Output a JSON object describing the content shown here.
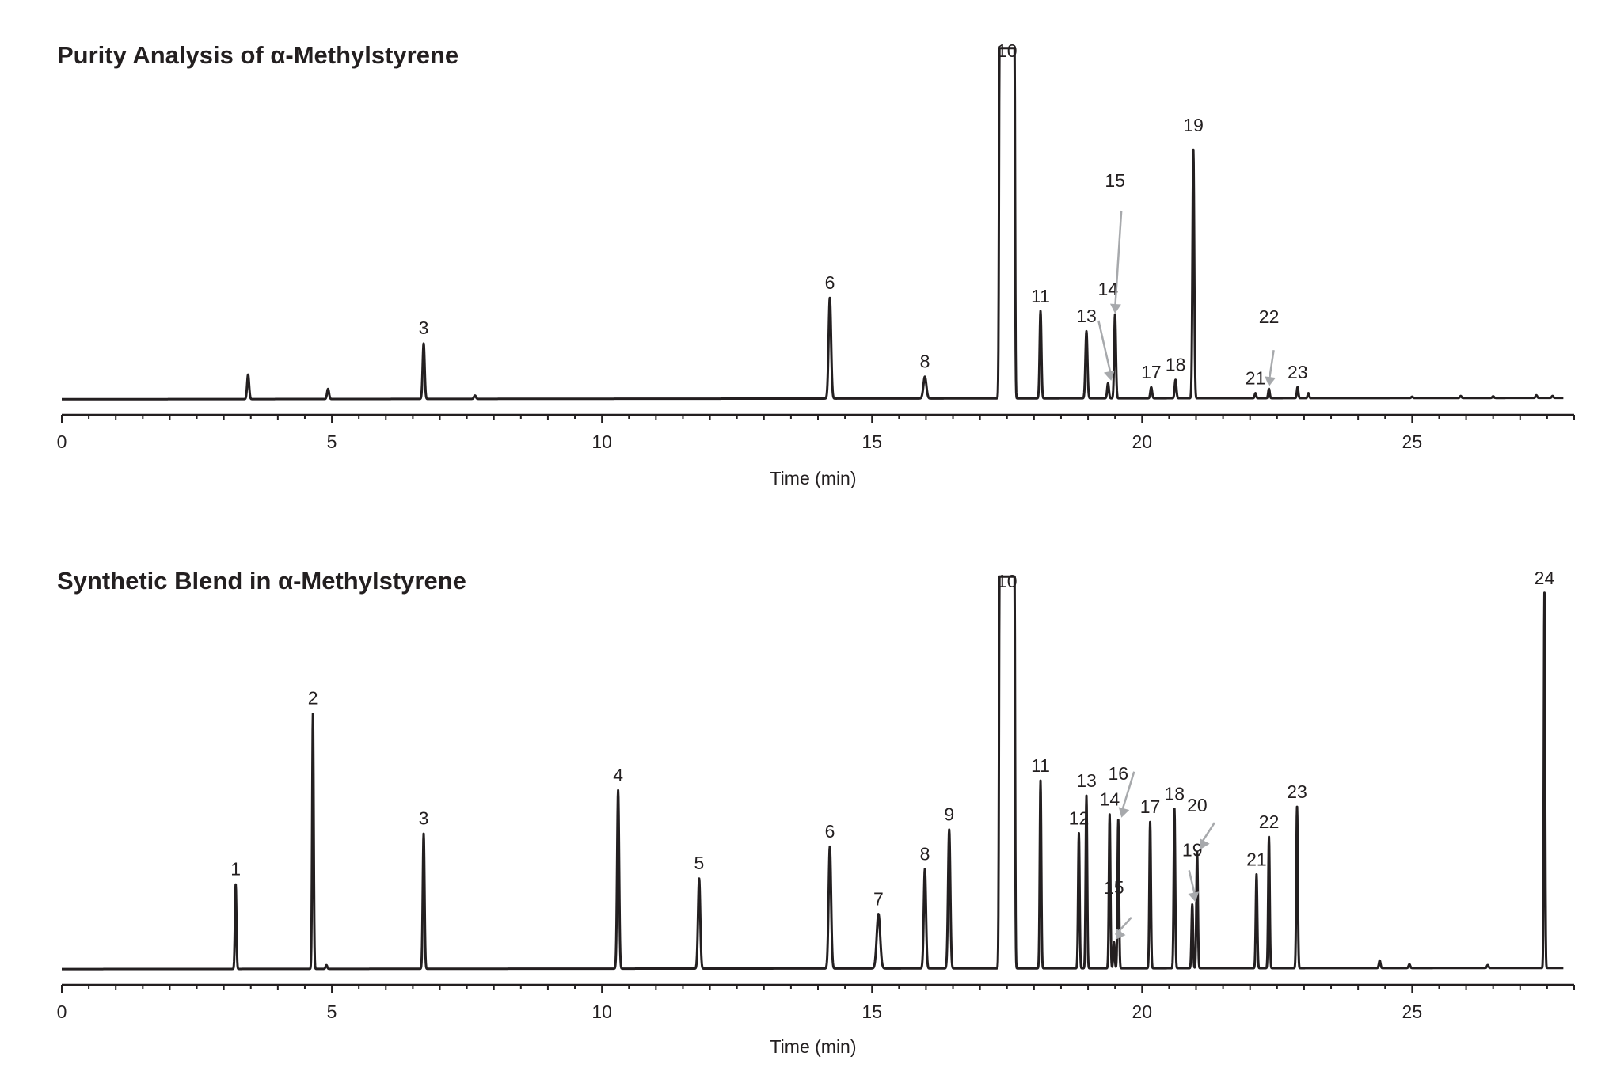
{
  "page": {
    "background": "#ffffff",
    "trace_color": "#231f20",
    "arrow_color": "#a7a9ac"
  },
  "chart_data": [
    {
      "type": "line",
      "title": "Purity Analysis of α-Methylstyrene",
      "xlabel": "Time (min)",
      "ylabel": "",
      "xlim": [
        0,
        28
      ],
      "ylim": [
        0,
        1
      ],
      "x_ticks": [
        0,
        5,
        10,
        15,
        20,
        25
      ],
      "x_tick_labels": [
        "0",
        "5",
        "10",
        "15",
        "20",
        "25"
      ],
      "minor_tick_step": 1,
      "grid": false,
      "legend": "none",
      "peaks": [
        {
          "label": "",
          "time": 3.45,
          "height": 0.073,
          "width": 0.04
        },
        {
          "label": "",
          "time": 4.93,
          "height": 0.03,
          "width": 0.04
        },
        {
          "label": "3",
          "time": 6.7,
          "height": 0.165,
          "width": 0.04
        },
        {
          "label": "",
          "time": 7.65,
          "height": 0.01,
          "width": 0.04
        },
        {
          "label": "6",
          "time": 14.22,
          "height": 0.3,
          "width": 0.05
        },
        {
          "label": "8",
          "time": 15.98,
          "height": 0.065,
          "width": 0.06
        },
        {
          "label": "10",
          "time": 17.5,
          "height": 1.0,
          "width": 0.27,
          "offscale": true
        },
        {
          "label": "11",
          "time": 18.12,
          "height": 0.26,
          "width": 0.035
        },
        {
          "label": "13",
          "time": 18.97,
          "height": 0.2,
          "width": 0.04
        },
        {
          "label": "14",
          "time": 19.37,
          "height": 0.045,
          "width": 0.035,
          "arrow": true
        },
        {
          "label": "15",
          "time": 19.5,
          "height": 0.25,
          "width": 0.035,
          "arrow": true
        },
        {
          "label": "17",
          "time": 20.17,
          "height": 0.033,
          "width": 0.035
        },
        {
          "label": "18",
          "time": 20.62,
          "height": 0.055,
          "width": 0.035
        },
        {
          "label": "19",
          "time": 20.95,
          "height": 0.74,
          "width": 0.035
        },
        {
          "label": "21",
          "time": 22.1,
          "height": 0.015,
          "width": 0.03
        },
        {
          "label": "22",
          "time": 22.35,
          "height": 0.028,
          "width": 0.03,
          "arrow": true
        },
        {
          "label": "23",
          "time": 22.88,
          "height": 0.033,
          "width": 0.03
        },
        {
          "label": "",
          "time": 23.08,
          "height": 0.015,
          "width": 0.03
        }
      ]
    },
    {
      "type": "line",
      "title": "Synthetic Blend in α-Methylstyrene",
      "xlabel": "Time (min)",
      "ylabel": "",
      "xlim": [
        0,
        28
      ],
      "ylim": [
        0,
        1
      ],
      "x_ticks": [
        0,
        5,
        10,
        15,
        20,
        25
      ],
      "x_tick_labels": [
        "0",
        "5",
        "10",
        "15",
        "20",
        "25"
      ],
      "minor_tick_step": 1,
      "grid": false,
      "legend": "none",
      "peaks": [
        {
          "label": "1",
          "time": 3.22,
          "height": 0.225,
          "width": 0.03
        },
        {
          "label": "2",
          "time": 4.65,
          "height": 0.68,
          "width": 0.03
        },
        {
          "label": "3",
          "time": 6.7,
          "height": 0.36,
          "width": 0.035
        },
        {
          "label": "4",
          "time": 10.3,
          "height": 0.475,
          "width": 0.04
        },
        {
          "label": "5",
          "time": 11.8,
          "height": 0.24,
          "width": 0.045
        },
        {
          "label": "6",
          "time": 14.22,
          "height": 0.325,
          "width": 0.05
        },
        {
          "label": "7",
          "time": 15.12,
          "height": 0.145,
          "width": 0.07
        },
        {
          "label": "8",
          "time": 15.98,
          "height": 0.265,
          "width": 0.045
        },
        {
          "label": "9",
          "time": 16.43,
          "height": 0.37,
          "width": 0.045
        },
        {
          "label": "10",
          "time": 17.5,
          "height": 1.0,
          "width": 0.27,
          "offscale": true
        },
        {
          "label": "11",
          "time": 18.12,
          "height": 0.5,
          "width": 0.03
        },
        {
          "label": "12",
          "time": 18.83,
          "height": 0.36,
          "width": 0.03
        },
        {
          "label": "13",
          "time": 18.97,
          "height": 0.46,
          "width": 0.03
        },
        {
          "label": "14",
          "time": 19.4,
          "height": 0.41,
          "width": 0.03
        },
        {
          "label": "15",
          "time": 19.48,
          "height": 0.07,
          "width": 0.03,
          "arrow": true
        },
        {
          "label": "16",
          "time": 19.56,
          "height": 0.395,
          "width": 0.03,
          "arrow": true
        },
        {
          "label": "17",
          "time": 20.15,
          "height": 0.39,
          "width": 0.03
        },
        {
          "label": "18",
          "time": 20.6,
          "height": 0.425,
          "width": 0.03
        },
        {
          "label": "19",
          "time": 20.93,
          "height": 0.17,
          "width": 0.03,
          "arrow": true
        },
        {
          "label": "20",
          "time": 21.02,
          "height": 0.31,
          "width": 0.03,
          "arrow": true
        },
        {
          "label": "21",
          "time": 22.12,
          "height": 0.25,
          "width": 0.03
        },
        {
          "label": "22",
          "time": 22.35,
          "height": 0.35,
          "width": 0.03
        },
        {
          "label": "23",
          "time": 22.87,
          "height": 0.43,
          "width": 0.03
        },
        {
          "label": "24",
          "time": 27.45,
          "height": 1.0,
          "width": 0.025
        }
      ]
    }
  ]
}
